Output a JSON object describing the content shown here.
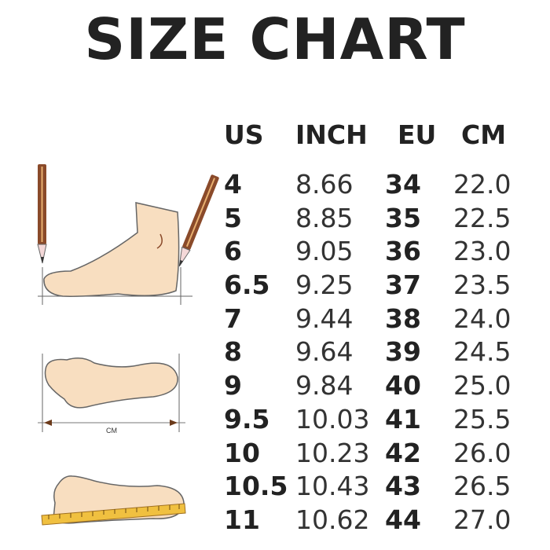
{
  "title": "SIZE CHART",
  "headers": {
    "us": "US",
    "inch": "INCH",
    "eu": "EU",
    "cm": "CM"
  },
  "rows": [
    {
      "us": "4",
      "inch": "8.66",
      "eu": "34",
      "cm": "22.0"
    },
    {
      "us": "5",
      "inch": "8.85",
      "eu": "35",
      "cm": "22.5"
    },
    {
      "us": "6",
      "inch": "9.05",
      "eu": "36",
      "cm": "23.0"
    },
    {
      "us": "6.5",
      "inch": "9.25",
      "eu": "37",
      "cm": "23.5"
    },
    {
      "us": "7",
      "inch": "9.44",
      "eu": "38",
      "cm": "24.0"
    },
    {
      "us": "8",
      "inch": "9.64",
      "eu": "39",
      "cm": "24.5"
    },
    {
      "us": "9",
      "inch": "9.84",
      "eu": "40",
      "cm": "25.0"
    },
    {
      "us": "9.5",
      "inch": "10.03",
      "eu": "41",
      "cm": "25.5"
    },
    {
      "us": "10",
      "inch": "10.23",
      "eu": "42",
      "cm": "26.0"
    },
    {
      "us": "10.5",
      "inch": "10.43",
      "eu": "43",
      "cm": "26.5"
    },
    {
      "us": "11",
      "inch": "10.62",
      "eu": "44",
      "cm": "27.0"
    }
  ],
  "illustration": {
    "measure_label": "CM",
    "skin_color": "#f8dec0",
    "pencil_color": "#8a4a2a",
    "ruler_color": "#f0c040"
  }
}
